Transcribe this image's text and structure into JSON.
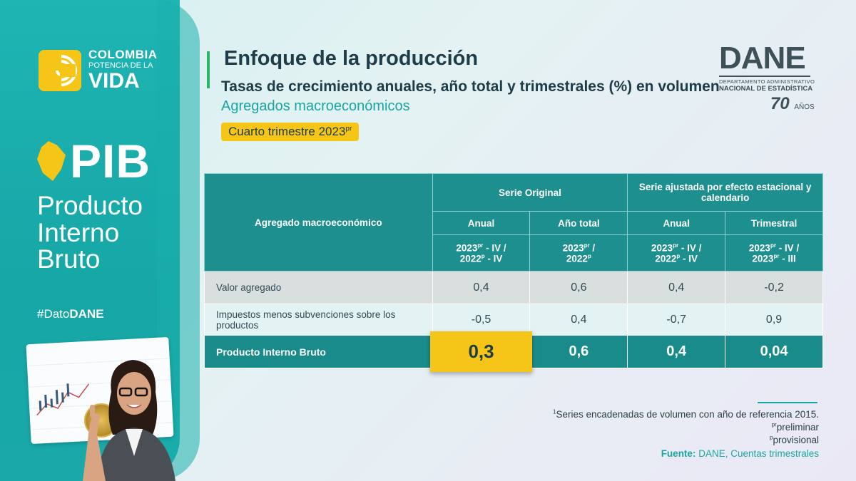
{
  "brand": {
    "line1": "COLOMBIA",
    "line2": "POTENCIA DE LA",
    "line3": "VIDA"
  },
  "sidebar": {
    "pib": "PIB",
    "sub1": "Producto",
    "sub2": "Interno",
    "sub3": "Bruto",
    "hashtag_prefix": "#Dato",
    "hashtag_bold": "DANE"
  },
  "header": {
    "title": "Enfoque de la producción",
    "subtitle": "Tasas de crecimiento anuales, año total y trimestrales (%) en volumen",
    "subtitle2": "Agregados macroeconómicos",
    "quarter": "Cuarto trimestre 2023",
    "quarter_sup": "pr"
  },
  "dane": {
    "name": "DANE",
    "sub1": "DEPARTAMENTO ADMINISTRATIVO",
    "sub2": "NACIONAL DE ESTADÍSTICA",
    "years": "70",
    "years_label": "AÑOS"
  },
  "table": {
    "col_agregado": "Agregado macroeconómico",
    "group_original": "Serie Original",
    "group_ajustada": "Serie ajustada por efecto estacional y calendario",
    "sub_anual": "Anual",
    "sub_total": "Año total",
    "sub_anual2": "Anual",
    "sub_trimestral": "Trimestral",
    "rows": [
      {
        "label": "Valor agregado",
        "values": [
          "0,4",
          "0,6",
          "0,4",
          "-0,2"
        ]
      },
      {
        "label": "Impuestos menos subvenciones sobre los productos",
        "values": [
          "-0,5",
          "0,4",
          "-0,7",
          "0,9"
        ]
      },
      {
        "label": "Producto Interno Bruto",
        "values": [
          "0,3",
          "0,6",
          "0,4",
          "0,04"
        ]
      }
    ]
  },
  "notes": {
    "note1": "Series encadenadas de volumen con año de referencia 2015.",
    "note1_sup": "1",
    "note2": "preliminar",
    "note2_sup": "pr",
    "note3": "provisional",
    "note3_sup": "p",
    "source_label": "Fuente:",
    "source_text": " DANE, Cuentas trimestrales"
  },
  "colors": {
    "teal": "#1d8f8f",
    "yellow": "#f5c518",
    "accent_green": "#2bb56a"
  }
}
